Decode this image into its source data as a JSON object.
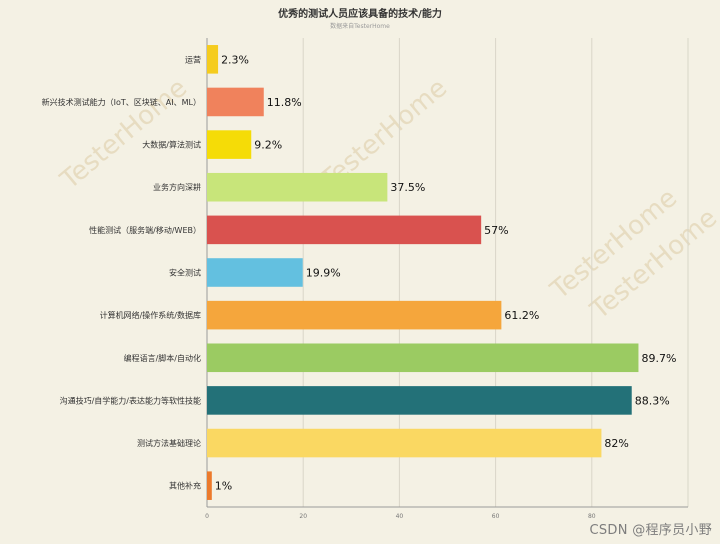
{
  "title": "优秀的测试人员应该具备的技术/能力",
  "subtitle": "数据来自TesterHome",
  "watermark": "TesterHome",
  "footer": "CSDN @程序员小野",
  "chart_data": {
    "type": "bar",
    "orientation": "horizontal",
    "categories": [
      "运营",
      "新兴技术测试能力（IoT、区块链、AI、ML）",
      "大数据/算法测试",
      "业务方向深耕",
      "性能测试（服务端/移动/WEB）",
      "安全测试",
      "计算机网络/操作系统/数据库",
      "编程语言/脚本/自动化",
      "沟通技巧/自学能力/表达能力等软性技能",
      "测试方法基础理论",
      "其他补充"
    ],
    "values": [
      2.3,
      11.8,
      9.2,
      37.5,
      57,
      19.9,
      61.2,
      89.7,
      88.3,
      82,
      1
    ],
    "value_labels": [
      "2.3%",
      "11.8%",
      "9.2%",
      "37.5%",
      "57%",
      "19.9%",
      "61.2%",
      "89.7%",
      "88.3%",
      "82%",
      "1%"
    ],
    "colors": [
      "#f5cc1e",
      "#f0825c",
      "#f5dc07",
      "#c8e57a",
      "#d9524f",
      "#63c0e0",
      "#f5a63c",
      "#9bcb62",
      "#237178",
      "#fad862",
      "#ec7a2b"
    ],
    "xticks": [
      0,
      20,
      40,
      60,
      80,
      100
    ],
    "xtick_labels": [
      "0",
      "20",
      "40",
      "60",
      "80",
      ""
    ],
    "xlim": [
      0,
      100
    ],
    "grid": true,
    "legend": "none"
  }
}
